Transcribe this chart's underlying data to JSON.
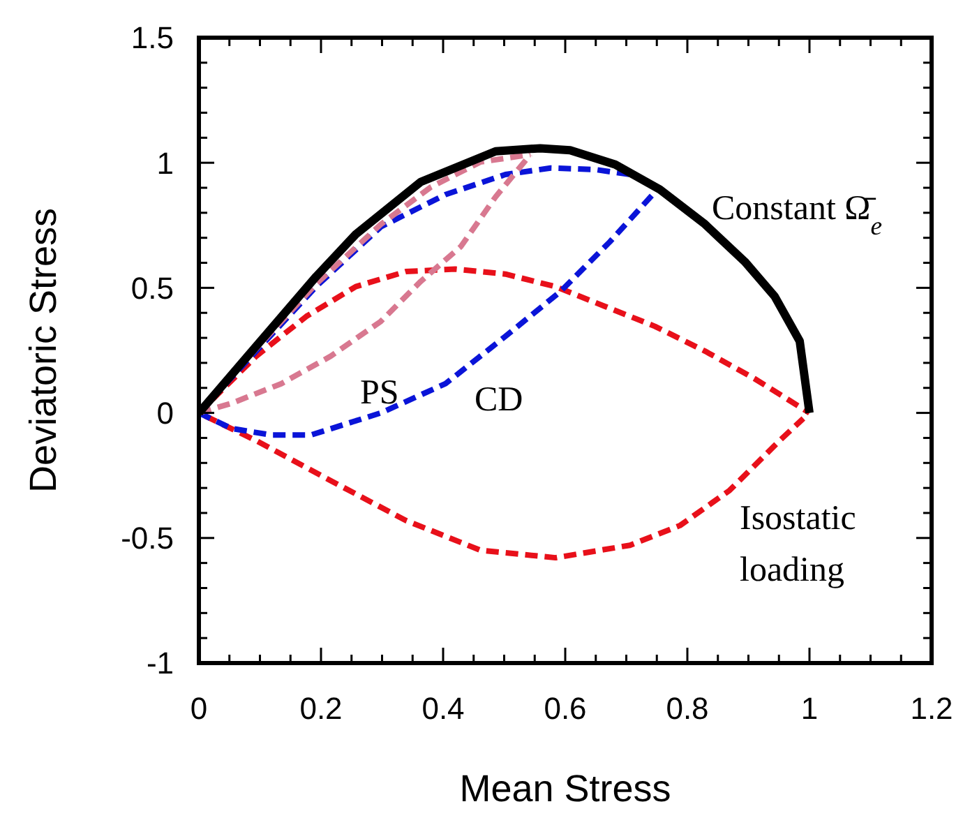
{
  "chart_data": {
    "type": "line",
    "xlabel": "Mean Stress",
    "ylabel": "Deviatoric Stress",
    "xlim": [
      0,
      1.2
    ],
    "ylim": [
      -1,
      1.5
    ],
    "xticks": [
      0,
      {
        "value": 0.05,
        "label": null
      },
      {
        "value": 0.1,
        "label": null
      },
      {
        "value": 0.15,
        "label": null
      },
      0.2,
      {
        "value": 0.25,
        "label": null
      },
      {
        "value": 0.3,
        "label": null
      },
      {
        "value": 0.35,
        "label": null
      },
      0.4,
      {
        "value": 0.45,
        "label": null
      },
      {
        "value": 0.5,
        "label": null
      },
      {
        "value": 0.55,
        "label": null
      },
      0.6,
      {
        "value": 0.65,
        "label": null
      },
      {
        "value": 0.7,
        "label": null
      },
      {
        "value": 0.75,
        "label": null
      },
      0.8,
      {
        "value": 0.85,
        "label": null
      },
      {
        "value": 0.9,
        "label": null
      },
      {
        "value": 0.95,
        "label": null
      },
      1,
      {
        "value": 1.05,
        "label": null
      },
      {
        "value": 1.1,
        "label": null
      },
      {
        "value": 1.15,
        "label": null
      },
      1.2
    ],
    "yticks": [
      -1,
      {
        "value": -0.9,
        "label": null
      },
      {
        "value": -0.8,
        "label": null
      },
      {
        "value": -0.7,
        "label": null
      },
      {
        "value": -0.6,
        "label": null
      },
      -0.5,
      {
        "value": -0.4,
        "label": null
      },
      {
        "value": -0.3,
        "label": null
      },
      {
        "value": -0.2,
        "label": null
      },
      {
        "value": -0.1,
        "label": null
      },
      0,
      {
        "value": 0.1,
        "label": null
      },
      {
        "value": 0.2,
        "label": null
      },
      {
        "value": 0.3,
        "label": null
      },
      {
        "value": 0.4,
        "label": null
      },
      0.5,
      {
        "value": 0.6,
        "label": null
      },
      {
        "value": 0.7,
        "label": null
      },
      {
        "value": 0.8,
        "label": null
      },
      {
        "value": 0.9,
        "label": null
      },
      1,
      {
        "value": 1.1,
        "label": null
      },
      {
        "value": 1.2,
        "label": null
      },
      {
        "value": 1.3,
        "label": null
      },
      {
        "value": 1.4,
        "label": null
      },
      1.5
    ],
    "grid": false,
    "marker": "none",
    "series": [
      {
        "color": "#e8101a",
        "line_style": "dashed",
        "x": [
          0,
          0.094,
          0.176,
          0.257,
          0.339,
          0.42,
          0.502,
          0.584,
          0.665,
          0.747,
          0.829,
          0.91,
          1
        ],
        "values": [
          0,
          0.227,
          0.386,
          0.505,
          0.565,
          0.575,
          0.555,
          0.505,
          0.426,
          0.346,
          0.247,
          0.137,
          0
        ]
      },
      {
        "color": "#e8101a",
        "line_style": "dashed",
        "x": [
          0.01,
          0.094,
          0.216,
          0.339,
          0.461,
          0.584,
          0.706,
          0.788,
          0.869,
          0.951,
          0.99
        ],
        "values": [
          -0.012,
          -0.111,
          -0.271,
          -0.43,
          -0.549,
          -0.579,
          -0.529,
          -0.45,
          -0.31,
          -0.111,
          -0.022
        ]
      },
      {
        "color": "#0a14d8",
        "line_style": "dashed",
        "x": [
          0,
          0.094,
          0.192,
          0.298,
          0.404,
          0.502,
          0.576,
          0.649,
          0.706
        ],
        "values": [
          0,
          0.247,
          0.505,
          0.744,
          0.873,
          0.953,
          0.979,
          0.973,
          0.953
        ]
      },
      {
        "color": "#0a14d8",
        "line_style": "dashed",
        "x": [
          0,
          0.053,
          0.118,
          0.184,
          0.298,
          0.404,
          0.502,
          0.592,
          0.673,
          0.747
        ],
        "values": [
          0,
          -0.062,
          -0.088,
          -0.088,
          0,
          0.117,
          0.306,
          0.485,
          0.684,
          0.883
        ]
      },
      {
        "color": "#d87890",
        "line_style": "dashed",
        "x": [
          0,
          0.094,
          0.192,
          0.298,
          0.38,
          0.461,
          0.543
        ],
        "values": [
          0,
          0.257,
          0.515,
          0.754,
          0.903,
          1.003,
          1.033
        ]
      },
      {
        "color": "#d87890",
        "line_style": "dashed",
        "x": [
          0,
          0.053,
          0.135,
          0.216,
          0.298,
          0.363,
          0.429,
          0.486,
          0.543
        ],
        "values": [
          0,
          0.038,
          0.117,
          0.227,
          0.366,
          0.525,
          0.665,
          0.864,
          1.033
        ]
      },
      {
        "color": "#000000",
        "line_style": "solid",
        "x": [
          0,
          0.094,
          0.192,
          0.257,
          0.363,
          0.486,
          0.559,
          0.608,
          0.682,
          0.755,
          0.829,
          0.894,
          0.943,
          0.984,
          1
        ],
        "values": [
          0,
          0.267,
          0.545,
          0.714,
          0.923,
          1.046,
          1.058,
          1.05,
          0.993,
          0.893,
          0.754,
          0.605,
          0.466,
          0.287,
          0
        ]
      }
    ],
    "annotations": [
      "Constant Ω̄$_{e}$",
      "PS",
      "CD",
      "Isostatic\nloading"
    ]
  }
}
